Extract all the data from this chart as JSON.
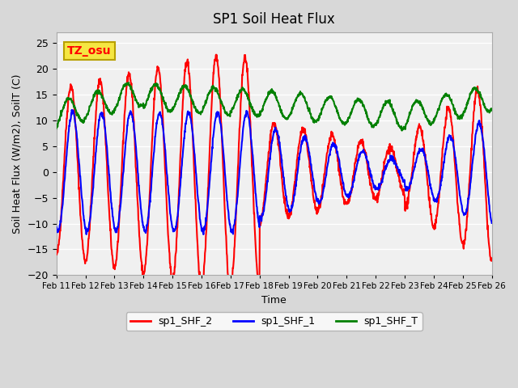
{
  "title": "SP1 Soil Heat Flux",
  "xlabel": "Time",
  "ylabel": "Soil Heat Flux (W/m2), SoilT (C)",
  "ylim": [
    -20,
    27
  ],
  "yticks": [
    -20,
    -15,
    -10,
    -5,
    0,
    5,
    10,
    15,
    20,
    25
  ],
  "fig_bg_color": "#d8d8d8",
  "plot_bg_color": "#f0f0f0",
  "legend_labels": [
    "sp1_SHF_2",
    "sp1_SHF_1",
    "sp1_SHF_T"
  ],
  "line_colors": [
    "red",
    "blue",
    "green"
  ],
  "annotation_text": "TZ_osu",
  "annotation_bg": "#f5e642",
  "annotation_border": "#b8a000",
  "x_tick_labels": [
    "Feb 11",
    "Feb 12",
    "Feb 13",
    "Feb 14",
    "Feb 15",
    "Feb 16",
    "Feb 17",
    "Feb 18",
    "Feb 19",
    "Feb 20",
    "Feb 21",
    "Feb 22",
    "Feb 23",
    "Feb 24",
    "Feb 25",
    "Feb 26"
  ],
  "n_days": 15,
  "line_width": 1.5,
  "grid_color": "white",
  "grid_linewidth": 1.0
}
